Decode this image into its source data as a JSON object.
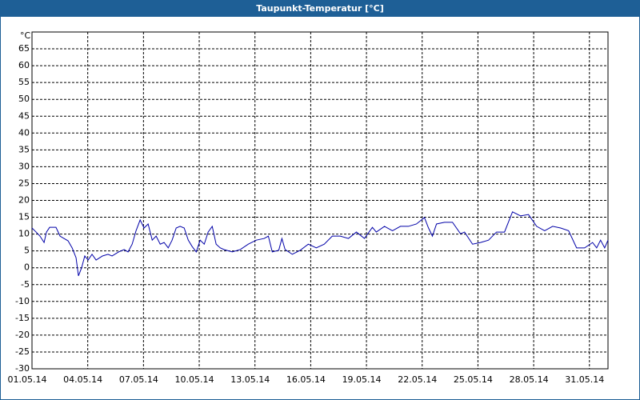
{
  "chart_data": {
    "type": "line",
    "title": "Taupunkt-Temperatur [°C]",
    "y_unit": "°C",
    "x": [
      1,
      1.22,
      1.43,
      1.65,
      1.78,
      1.95,
      2.29,
      2.51,
      2.72,
      2.94,
      3.16,
      3.37,
      3.5,
      3.67,
      3.84,
      4.02,
      4.23,
      4.45,
      4.79,
      5.09,
      5.31,
      5.66,
      5.96,
      6.17,
      6.39,
      6.6,
      6.82,
      7.03,
      7.25,
      7.47,
      7.68,
      7.9,
      8.11,
      8.33,
      8.54,
      8.76,
      8.97,
      9.19,
      9.41,
      9.62,
      9.84,
      10.05,
      10.27,
      10.48,
      10.7,
      10.91,
      11.13,
      11.34,
      11.78,
      12.21,
      12.64,
      13.07,
      13.5,
      13.72,
      13.93,
      14.28,
      14.45,
      14.62,
      15.01,
      15.44,
      15.87,
      16.3,
      16.73,
      17.16,
      17.59,
      18.03,
      18.46,
      18.89,
      19.32,
      19.53,
      19.97,
      20.4,
      20.83,
      21.26,
      21.69,
      22.12,
      22.34,
      22.55,
      22.77,
      23.2,
      23.63,
      24.06,
      24.28,
      24.71,
      25.14,
      25.57,
      26,
      26.43,
      26.86,
      27.29,
      27.72,
      28.16,
      28.59,
      29.02,
      29.45,
      29.88,
      30.31,
      30.74,
      31.17,
      31.39,
      31.6,
      31.82,
      32
    ],
    "series": [
      {
        "name": "Taupunkt",
        "color": "#0000a8",
        "values": [
          11.8,
          10.6,
          9.4,
          7.5,
          10.6,
          12,
          12,
          9.4,
          8.7,
          8,
          5.9,
          3,
          -2.4,
          0,
          3.5,
          2.3,
          4,
          2.3,
          3.5,
          4,
          3.5,
          4.7,
          5.4,
          4.7,
          7,
          11,
          14.2,
          11.8,
          13,
          8.2,
          9.4,
          7,
          7.5,
          5.9,
          8.2,
          11.8,
          12.3,
          11.8,
          8.2,
          6.3,
          4.7,
          8.2,
          7,
          10.6,
          12.3,
          7,
          5.9,
          5.4,
          4.7,
          5.4,
          7,
          8.2,
          8.7,
          9.4,
          4.7,
          5.2,
          8.7,
          5.4,
          4,
          5.2,
          7,
          5.9,
          7,
          9.4,
          9.4,
          8.7,
          10.6,
          8.7,
          12,
          10.6,
          12.3,
          11,
          12.3,
          12.3,
          13,
          14.9,
          11.8,
          9.4,
          13,
          13.5,
          13.5,
          10.1,
          10.6,
          7,
          7.5,
          8.2,
          10.6,
          10.6,
          16.6,
          15.4,
          15.8,
          12.3,
          11,
          12.3,
          11.8,
          11,
          5.9,
          5.9,
          7.5,
          5.9,
          8.2,
          5.9,
          8.2
        ]
      }
    ],
    "xlim": [
      1,
      32
    ],
    "xticks": [
      {
        "value": 1,
        "label": "01.05.14"
      },
      {
        "value": 4,
        "label": "04.05.14"
      },
      {
        "value": 7,
        "label": "07.05.14"
      },
      {
        "value": 10,
        "label": "10.05.14"
      },
      {
        "value": 13,
        "label": "13.05.14"
      },
      {
        "value": 16,
        "label": "16.05.14"
      },
      {
        "value": 19,
        "label": "19.05.14"
      },
      {
        "value": 22,
        "label": "22.05.14"
      },
      {
        "value": 25,
        "label": "25.05.14"
      },
      {
        "value": 28,
        "label": "28.05.14"
      },
      {
        "value": 31,
        "label": "31.05.14"
      }
    ],
    "ylim": [
      -30,
      70
    ],
    "yticks": [
      -30,
      -25,
      -20,
      -15,
      -10,
      -5,
      0,
      5,
      10,
      15,
      20,
      25,
      30,
      35,
      40,
      45,
      50,
      55,
      60,
      65
    ],
    "grid": true
  }
}
